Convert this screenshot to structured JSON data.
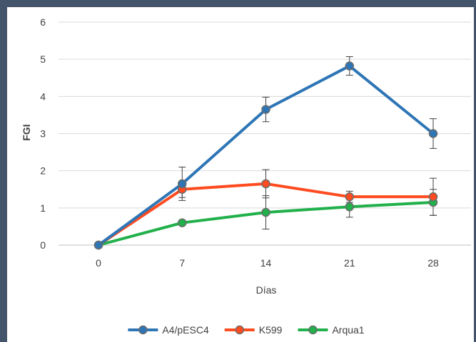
{
  "chart_data": {
    "type": "line",
    "title": "",
    "xlabel": "Días",
    "ylabel": "FGI",
    "x": [
      0,
      7,
      14,
      21,
      28
    ],
    "x_ticks": [
      "0",
      "7",
      "14",
      "21",
      "28"
    ],
    "y_ticks": [
      "0",
      "1",
      "2",
      "3",
      "4",
      "5",
      "6"
    ],
    "ylim": [
      0,
      6
    ],
    "grid": "horizontal",
    "legend_position": "bottom",
    "series": [
      {
        "name": "A4/pESC4",
        "color": "#2e75b6",
        "values": [
          0,
          1.65,
          3.65,
          4.82,
          3.0
        ],
        "error": [
          0,
          0.45,
          0.33,
          0.25,
          0.4
        ]
      },
      {
        "name": "K599",
        "color": "#ff4b1f",
        "values": [
          0,
          1.5,
          1.65,
          1.3,
          1.3
        ],
        "error": [
          0,
          0.22,
          0.38,
          0.15,
          0.5
        ]
      },
      {
        "name": "Arqua1",
        "color": "#21b04b",
        "values": [
          0,
          0.6,
          0.88,
          1.03,
          1.15
        ],
        "error": [
          0,
          0.05,
          0.45,
          0.28,
          0.35
        ]
      }
    ]
  }
}
